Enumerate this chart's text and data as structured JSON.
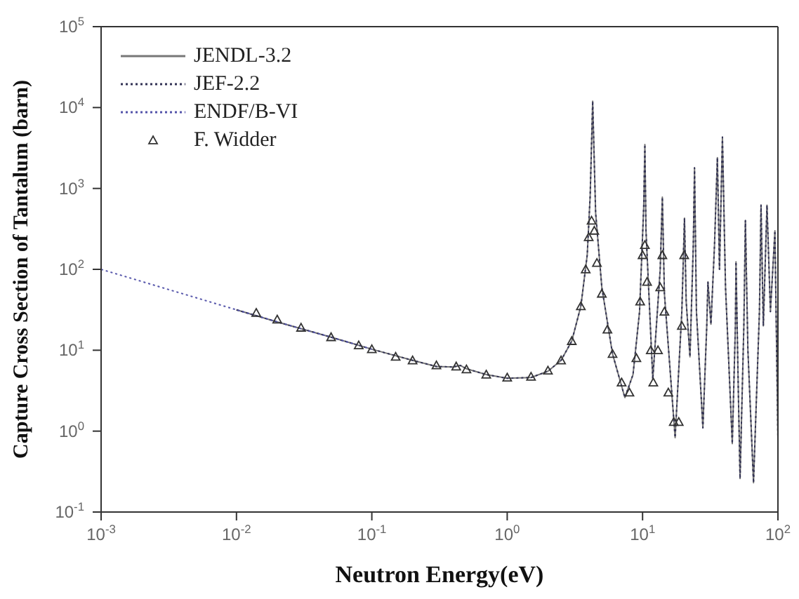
{
  "chart_data": {
    "type": "line",
    "xlabel": "Neutron Energy(eV)",
    "ylabel": "Capture Cross Section of Tantalum (barn)",
    "log": "xy",
    "legend": "top left",
    "xlim": [
      0.001,
      100
    ],
    "ylim": [
      0.1,
      100000
    ],
    "xticks": [
      {
        "value": 0.001,
        "label": "10$^{-3}$"
      },
      {
        "value": 0.01,
        "label": "10$^{-2}$"
      },
      {
        "value": 0.1,
        "label": "10$^{-1}$"
      },
      {
        "value": 1,
        "label": "10$^{0}$"
      },
      {
        "value": 10,
        "label": "10$^{1}$"
      },
      {
        "value": 100,
        "label": "10$^{2}$"
      }
    ],
    "yticks": [
      {
        "value": 0.1,
        "label": "10$^{-1}$"
      },
      {
        "value": 1,
        "label": "10$^{0}$"
      },
      {
        "value": 10,
        "label": "10$^{1}$"
      },
      {
        "value": 100,
        "label": "10$^{2}$"
      },
      {
        "value": 1000,
        "label": "10$^{3}$"
      },
      {
        "value": 10000,
        "label": "10$^{4}$"
      },
      {
        "value": 100000,
        "label": "10$^{5}$"
      }
    ],
    "series": [
      {
        "name": "JENDL-3.2",
        "color": "#777777",
        "line_style": "solid",
        "marker": "none",
        "x": [
          0.01,
          0.02,
          0.05,
          0.1,
          0.2,
          0.3,
          0.4,
          0.45,
          0.5,
          0.7,
          1,
          1.5,
          2,
          2.5,
          3,
          3.5,
          3.9,
          4.1,
          4.28,
          4.5,
          5,
          6,
          7.4,
          8.5,
          9.5,
          10.2,
          10.4,
          10.6,
          11.9,
          13.5,
          14,
          14.5,
          17.4,
          19.5,
          20.4,
          21,
          22.4,
          23.7,
          24.2,
          25,
          27.9,
          29.8,
          30.4,
          32,
          34,
          35.7,
          37,
          38.9,
          41,
          46,
          48.5,
          49,
          51,
          52.5,
          56,
          57.5,
          60,
          66,
          73,
          75,
          78,
          83,
          88,
          95,
          100
        ],
        "values": [
          31.6,
          22.4,
          14.5,
          10.3,
          7.5,
          6.3,
          6.2,
          6.5,
          5.9,
          5,
          4.5,
          4.6,
          5.5,
          7.5,
          13,
          35,
          150,
          800,
          12000,
          500,
          60,
          9,
          2.6,
          5,
          30,
          600,
          3500,
          300,
          4.4,
          100,
          780,
          50,
          0.83,
          30,
          430,
          40,
          8.3,
          200,
          1800,
          30,
          1.1,
          20,
          70,
          21,
          200,
          2400,
          100,
          4300,
          60,
          0.7,
          20,
          124,
          3,
          0.26,
          20,
          400,
          10,
          0.23,
          30,
          620,
          20,
          620,
          30,
          300,
          0.78
        ]
      },
      {
        "name": "JEF-2.2",
        "color": "#333355",
        "line_style": "dotted",
        "marker": "none",
        "x": [
          0.01,
          0.02,
          0.05,
          0.1,
          0.2,
          0.3,
          0.4,
          0.45,
          0.5,
          0.7,
          1,
          1.5,
          2,
          2.5,
          3,
          3.5,
          3.9,
          4.1,
          4.28,
          4.5,
          5,
          6,
          7.4,
          8.5,
          9.5,
          10.2,
          10.4,
          10.6,
          11.9,
          13.5,
          14,
          14.5,
          17.4,
          19.5,
          20.4,
          21,
          22.4,
          23.7,
          24.2,
          25,
          27.9,
          29.8,
          30.4,
          32,
          34,
          35.7,
          37,
          38.9,
          41,
          46,
          48.5,
          49,
          51,
          52.5,
          56,
          57.5,
          60,
          66,
          73,
          75,
          78,
          83,
          88,
          95,
          100
        ],
        "values": [
          31.6,
          22.4,
          14.5,
          10.3,
          7.5,
          6.3,
          6.2,
          6.5,
          5.9,
          5,
          4.5,
          4.6,
          5.5,
          7.5,
          13,
          35,
          150,
          800,
          12000,
          500,
          60,
          9,
          2.6,
          5,
          30,
          600,
          3500,
          300,
          4.4,
          100,
          780,
          50,
          0.83,
          30,
          430,
          40,
          8.3,
          200,
          1800,
          30,
          1.1,
          20,
          70,
          21,
          200,
          2400,
          100,
          4300,
          60,
          0.7,
          20,
          124,
          3,
          0.26,
          20,
          400,
          10,
          0.23,
          30,
          620,
          20,
          620,
          30,
          300,
          0.78
        ]
      },
      {
        "name": "ENDF/B-VI",
        "color": "#5555aa",
        "line_style": "dotted",
        "marker": "none",
        "x": [
          0.001,
          0.002,
          0.005,
          0.01,
          0.02,
          0.05,
          0.1
        ],
        "values": [
          100,
          70.7,
          44.7,
          31.6,
          22.4,
          14.5,
          10.3
        ]
      },
      {
        "name": "F. Widder",
        "type": "scatter",
        "color": "#333333",
        "marker": "triangle",
        "x": [
          0.014,
          0.02,
          0.03,
          0.05,
          0.08,
          0.1,
          0.15,
          0.2,
          0.3,
          0.42,
          0.5,
          0.7,
          1,
          1.5,
          2,
          2.5,
          3,
          3.5,
          3.8,
          4,
          4.2,
          4.4,
          4.6,
          5,
          5.5,
          6,
          7,
          8,
          9,
          9.6,
          10,
          10.4,
          10.8,
          11.5,
          12,
          13,
          13.5,
          14,
          14.5,
          15.5,
          17,
          18.5,
          19.5,
          20.3
        ],
        "values": [
          29,
          24,
          19,
          14.5,
          11.5,
          10.3,
          8.3,
          7.5,
          6.5,
          6.3,
          5.8,
          5,
          4.6,
          4.7,
          5.6,
          7.5,
          13,
          35,
          100,
          250,
          400,
          300,
          120,
          50,
          18,
          9,
          4,
          3,
          8,
          40,
          150,
          200,
          70,
          10,
          4,
          10,
          60,
          150,
          30,
          3,
          1.3,
          1.3,
          20,
          150
        ]
      }
    ]
  }
}
